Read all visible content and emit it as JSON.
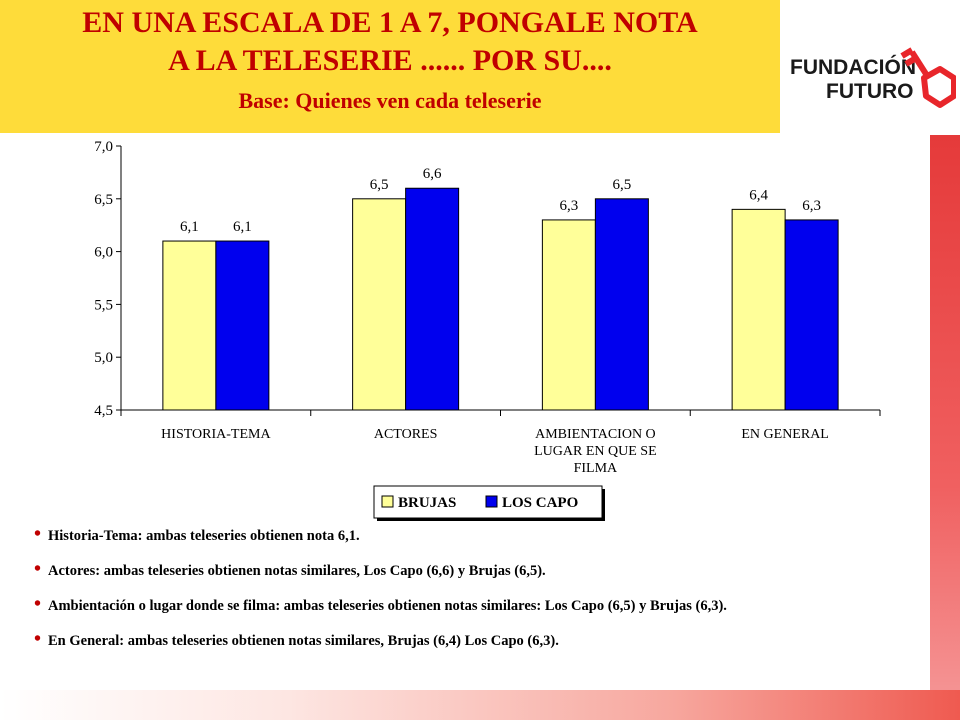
{
  "header": {
    "title_line1": "EN UNA ESCALA DE 1 A 7, PONGALE NOTA",
    "title_line2": "A LA TELESERIE ...... POR SU....",
    "subtitle": "Base: Quienes ven cada teleserie"
  },
  "logo": {
    "line1": "FUNDACIÓN",
    "line2": "FUTURO",
    "icon": "key-icon",
    "accent_color": "#e8262b"
  },
  "chart_data": {
    "type": "bar",
    "categories": [
      "HISTORIA-TEMA",
      "ACTORES",
      "AMBIENTACION O LUGAR EN QUE SE FILMA",
      "EN GENERAL"
    ],
    "category_label_lines": [
      [
        "HISTORIA-TEMA"
      ],
      [
        "ACTORES"
      ],
      [
        "AMBIENTACION O",
        "LUGAR EN QUE SE",
        "FILMA"
      ],
      [
        "EN GENERAL"
      ]
    ],
    "series": [
      {
        "name": "BRUJAS",
        "values": [
          6.1,
          6.5,
          6.3,
          6.4
        ],
        "labels": [
          "6,1",
          "6,5",
          "6,3",
          "6,4"
        ],
        "color": "#ffff99"
      },
      {
        "name": "LOS CAPO",
        "values": [
          6.1,
          6.6,
          6.5,
          6.3
        ],
        "labels": [
          "6,1",
          "6,6",
          "6,5",
          "6,3"
        ],
        "color": "#0000ee"
      }
    ],
    "ylim": [
      4.5,
      7.0
    ],
    "yticks": [
      4.5,
      5.0,
      5.5,
      6.0,
      6.5,
      7.0
    ],
    "ytick_labels": [
      "4,5",
      "5,0",
      "5,5",
      "6,0",
      "6,5",
      "7,0"
    ],
    "grid": false,
    "legend": "bottom-center"
  },
  "notes": [
    "Historia-Tema: ambas teleseries obtienen nota 6,1.",
    "Actores: ambas teleseries obtienen notas similares, Los Capo (6,6) y Brujas (6,5).",
    "Ambientación o lugar donde se filma: ambas teleseries obtienen notas similares: Los Capo (6,5) y Brujas (6,3).",
    "En General: ambas teleseries obtienen notas similares, Brujas (6,4) Los Capo (6,3)."
  ]
}
